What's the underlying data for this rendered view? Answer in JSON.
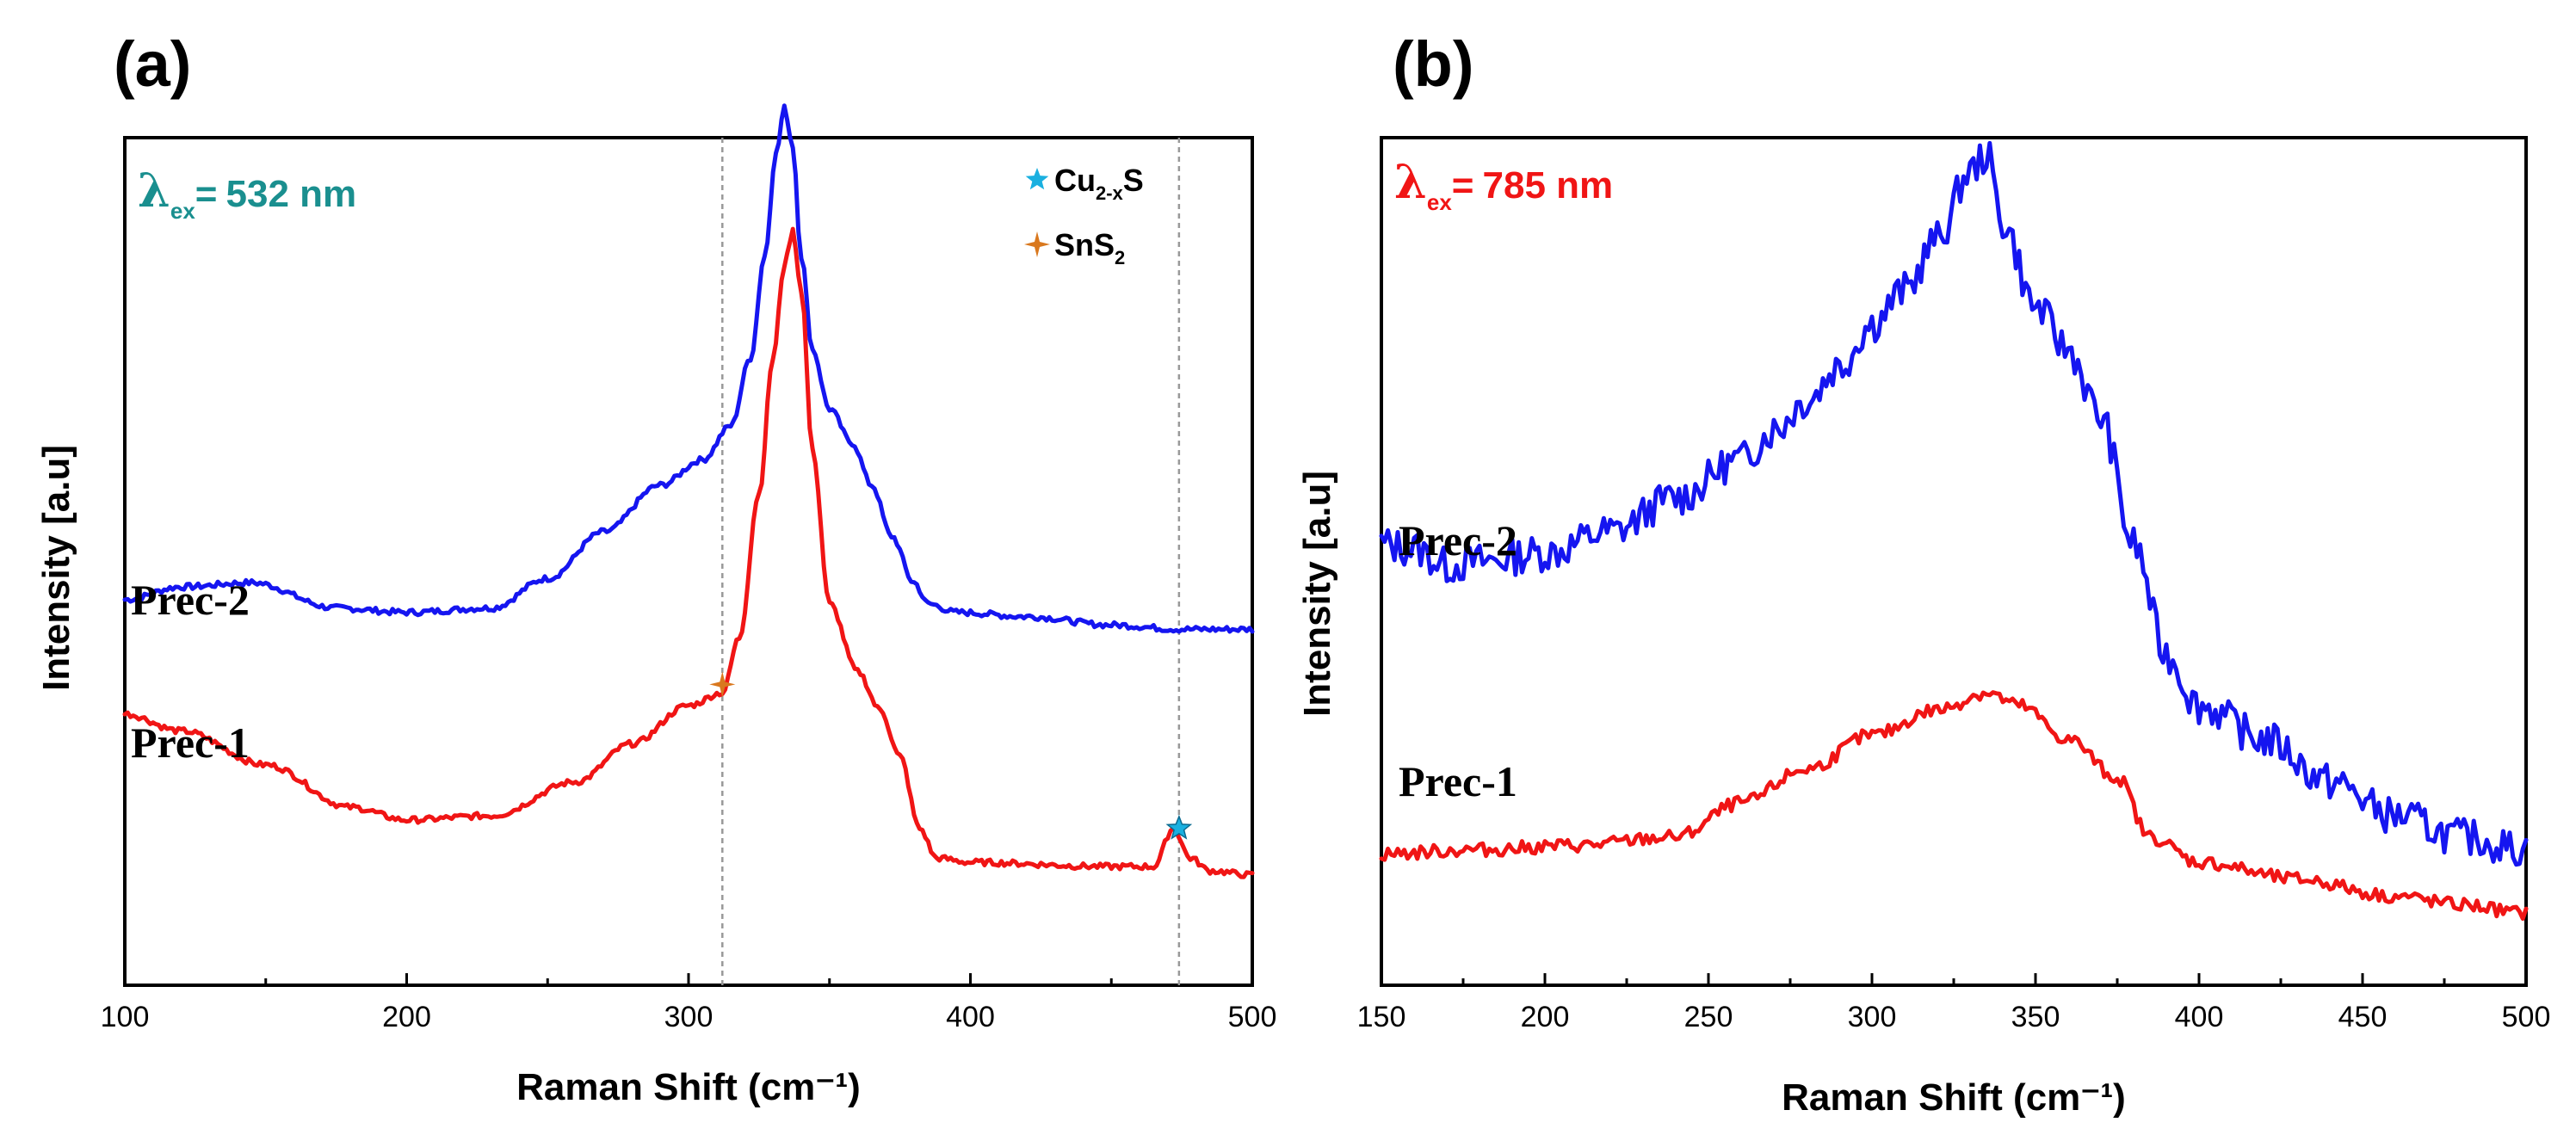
{
  "colors": {
    "blue": "#1515f0",
    "red": "#f01515",
    "teal": "#1a8f8f",
    "star_cyan": "#1ab0e0",
    "star_orange": "#d9781e"
  },
  "chart_data": [
    {
      "type": "line",
      "panel_label": "(a)",
      "excitation": {
        "symbol": "λ",
        "subscript": "ex",
        "equals": "=",
        "value": "532 nm"
      },
      "xlabel": "Raman Shift (cm⁻¹)",
      "ylabel": "Intensity [a.u]",
      "xlim": [
        100,
        500
      ],
      "ylim": [
        0,
        10
      ],
      "xticks": [
        "100",
        "200",
        "300",
        "400",
        "500"
      ],
      "guide_lines_x": [
        312,
        474
      ],
      "legend": [
        {
          "marker": "star",
          "label": "Cu",
          "sub": "2-x",
          "label2": "S"
        },
        {
          "marker": "cross",
          "label": "SnS",
          "sub": "2",
          "label2": ""
        }
      ],
      "markers": [
        {
          "type": "cross",
          "x": 312,
          "y": 3.55
        },
        {
          "type": "star",
          "x": 474,
          "y": 1.85
        }
      ],
      "series": [
        {
          "name": "Prec-2",
          "color_key": "blue",
          "x": [
            100,
            120,
            145,
            175,
            200,
            230,
            250,
            270,
            290,
            305,
            315,
            322,
            327,
            331,
            334,
            337,
            340,
            344,
            350,
            358,
            365,
            372,
            380,
            385,
            395,
            420,
            450,
            475,
            500
          ],
          "y": [
            4.55,
            4.7,
            4.75,
            4.45,
            4.4,
            4.45,
            4.8,
            5.35,
            5.9,
            6.2,
            6.6,
            7.4,
            8.6,
            9.8,
            10.35,
            9.9,
            8.6,
            7.5,
            6.8,
            6.4,
            5.9,
            5.3,
            4.75,
            4.5,
            4.4,
            4.35,
            4.25,
            4.2,
            4.2
          ]
        },
        {
          "name": "Prec-1",
          "color_key": "red",
          "x": [
            100,
            120,
            150,
            180,
            200,
            230,
            260,
            280,
            300,
            312,
            318,
            325,
            330,
            334,
            337,
            340,
            344,
            350,
            360,
            368,
            375,
            382,
            388,
            400,
            450,
            465,
            472,
            478,
            485,
            500
          ],
          "y": [
            3.2,
            3.0,
            2.6,
            2.1,
            1.95,
            2.0,
            2.4,
            2.85,
            3.3,
            3.45,
            4.1,
            5.8,
            7.4,
            8.5,
            8.9,
            8.2,
            6.3,
            4.5,
            3.7,
            3.25,
            2.7,
            1.85,
            1.5,
            1.45,
            1.4,
            1.4,
            1.85,
            1.5,
            1.35,
            1.3
          ]
        }
      ]
    },
    {
      "type": "line",
      "panel_label": "(b)",
      "excitation": {
        "symbol": "λ",
        "subscript": "ex",
        "equals": "=",
        "value": "785 nm"
      },
      "xlabel": "Raman Shift (cm⁻¹)",
      "ylabel": "Intensity [a.u]",
      "xlim": [
        150,
        500
      ],
      "ylim": [
        0,
        10
      ],
      "xticks": [
        "150",
        "200",
        "250",
        "300",
        "350",
        "400",
        "450",
        "500"
      ],
      "series": [
        {
          "name": "Prec-2",
          "color_key": "blue",
          "x": [
            150,
            160,
            170,
            180,
            200,
            220,
            240,
            260,
            270,
            280,
            290,
            300,
            310,
            320,
            330,
            335,
            340,
            350,
            360,
            370,
            380,
            390,
            400,
            420,
            440,
            460,
            480,
            500
          ],
          "y": [
            5.2,
            5.15,
            4.95,
            5.0,
            5.1,
            5.35,
            5.75,
            6.2,
            6.55,
            6.9,
            7.3,
            7.8,
            8.2,
            8.8,
            9.6,
            9.8,
            9.0,
            8.0,
            7.5,
            6.7,
            5.2,
            3.9,
            3.3,
            2.9,
            2.4,
            2.0,
            1.75,
            1.6
          ]
        },
        {
          "name": "Prec-1",
          "color_key": "red",
          "x": [
            150,
            180,
            210,
            240,
            260,
            280,
            300,
            320,
            335,
            345,
            360,
            375,
            385,
            400,
            430,
            460,
            480,
            500
          ],
          "y": [
            1.55,
            1.6,
            1.65,
            1.75,
            2.15,
            2.55,
            2.95,
            3.25,
            3.45,
            3.3,
            2.9,
            2.45,
            1.75,
            1.45,
            1.25,
            1.05,
            0.95,
            0.85
          ]
        }
      ]
    }
  ]
}
